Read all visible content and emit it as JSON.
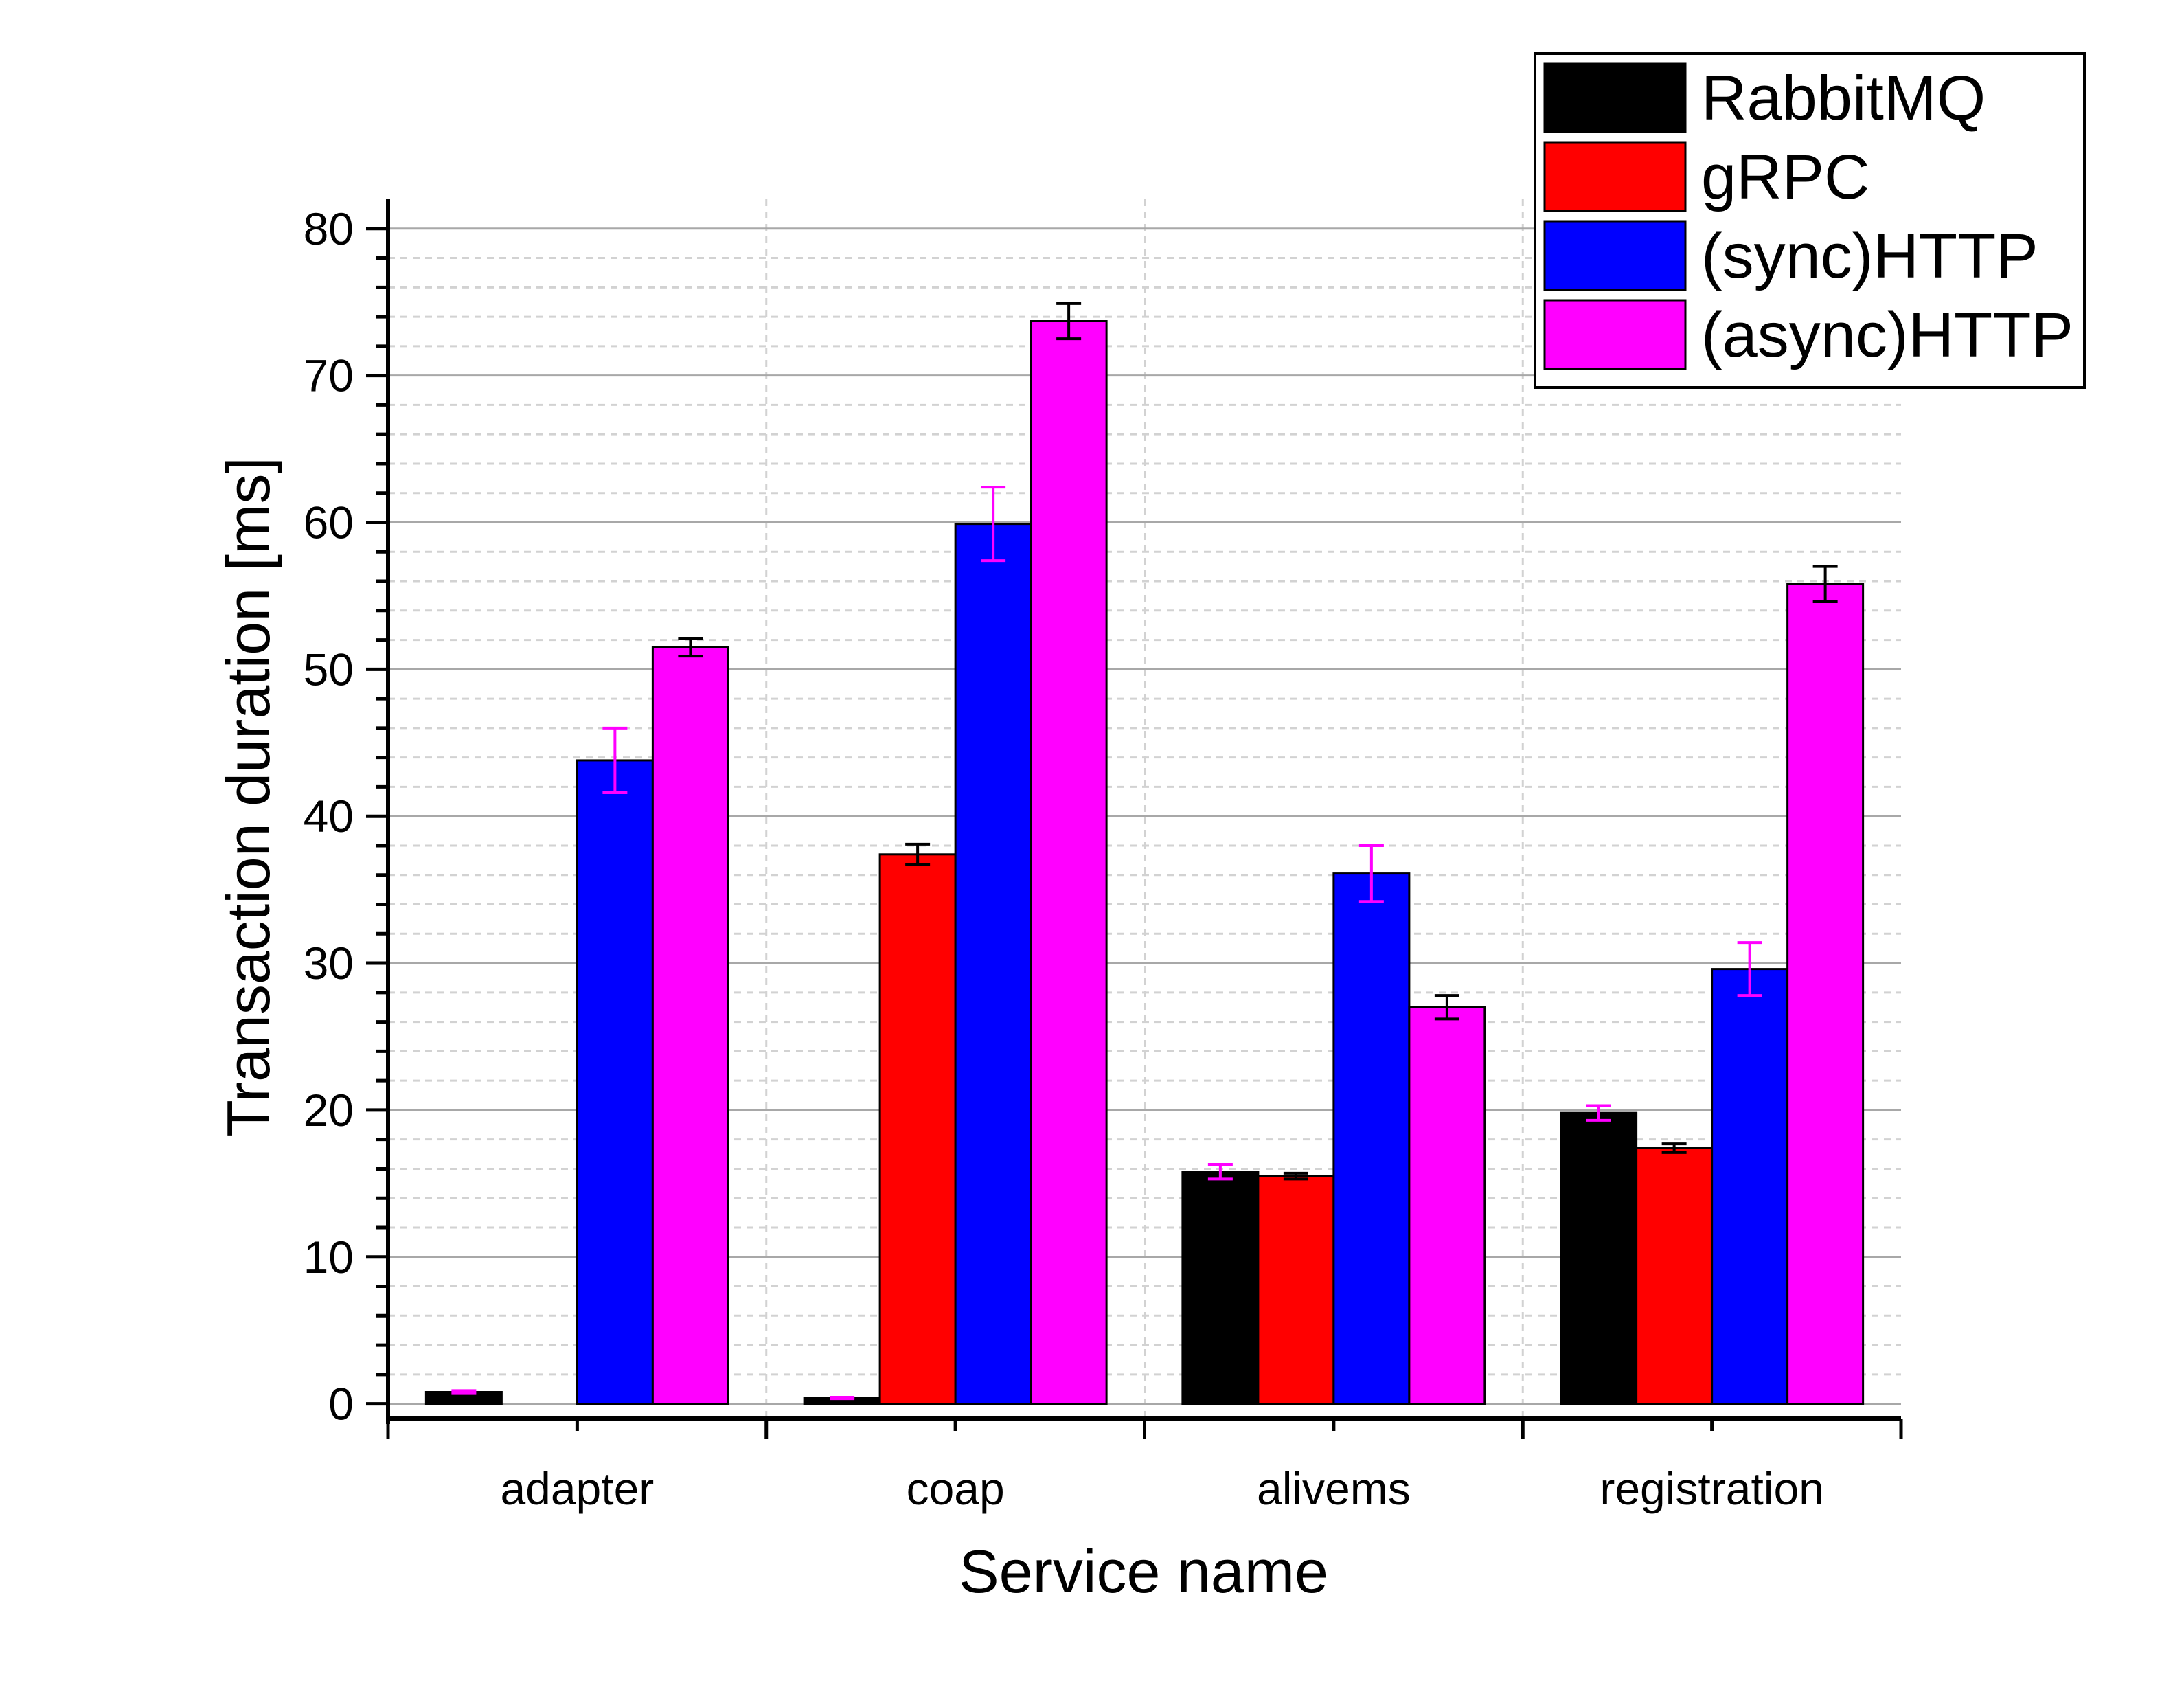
{
  "chart_data": {
    "type": "bar",
    "title": "",
    "xlabel": "Service name",
    "ylabel": "Transaction duration [ms]",
    "categories": [
      "adapter",
      "coap",
      "alivems",
      "registration"
    ],
    "ylim": [
      -1,
      82
    ],
    "yticks": [
      0,
      10,
      20,
      30,
      40,
      50,
      60,
      70,
      80
    ],
    "grid": true,
    "legend_position": "top-right",
    "series": [
      {
        "name": "RabbitMQ",
        "color": "#000000",
        "error_color": "#ff00ff",
        "values": [
          0.8,
          0.4,
          15.8,
          19.8
        ],
        "errors": [
          0.1,
          0.05,
          0.5,
          0.5
        ]
      },
      {
        "name": "gRPC",
        "color": "#ff0000",
        "error_color": "#000000",
        "values": [
          0,
          37.4,
          15.5,
          17.4
        ],
        "errors": [
          0,
          0.7,
          0.2,
          0.3
        ]
      },
      {
        "name": "(sync)HTTP",
        "color": "#0000ff",
        "error_color": "#ff00ff",
        "values": [
          43.8,
          59.9,
          36.1,
          29.6
        ],
        "errors": [
          2.2,
          2.5,
          1.9,
          1.8
        ]
      },
      {
        "name": "(async)HTTP",
        "color": "#ff00ff",
        "error_color": "#000000",
        "values": [
          51.5,
          73.7,
          27.0,
          55.8
        ],
        "errors": [
          0.6,
          1.2,
          0.8,
          1.2
        ]
      }
    ]
  }
}
